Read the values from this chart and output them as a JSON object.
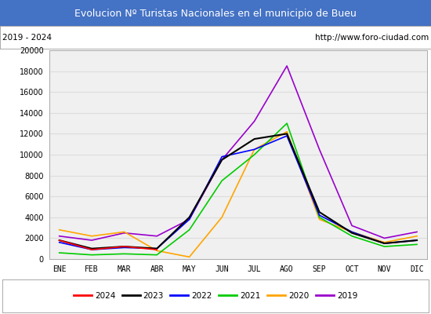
{
  "title": "Evolucion Nº Turistas Nacionales en el municipio de Bueu",
  "subtitle_left": "2019 - 2024",
  "subtitle_right": "http://www.foro-ciudad.com",
  "title_bg_color": "#4472c4",
  "title_text_color": "#ffffff",
  "months": [
    "ENE",
    "FEB",
    "MAR",
    "ABR",
    "MAY",
    "JUN",
    "JUL",
    "AGO",
    "SEP",
    "OCT",
    "NOV",
    "DIC"
  ],
  "ylim": [
    0,
    20000
  ],
  "yticks": [
    0,
    2000,
    4000,
    6000,
    8000,
    10000,
    12000,
    14000,
    16000,
    18000,
    20000
  ],
  "series": {
    "2024": {
      "color": "#ff0000",
      "linewidth": 1.2,
      "data": [
        1800,
        900,
        1200,
        900,
        null,
        null,
        null,
        null,
        null,
        null,
        null,
        null
      ]
    },
    "2023": {
      "color": "#000000",
      "linewidth": 1.5,
      "data": [
        1800,
        1000,
        1200,
        1000,
        4000,
        9500,
        11500,
        12000,
        4500,
        2500,
        1500,
        1800
      ]
    },
    "2022": {
      "color": "#0000ff",
      "linewidth": 1.2,
      "data": [
        1600,
        900,
        1100,
        1000,
        3800,
        9800,
        10500,
        11800,
        4200,
        2600,
        1500,
        1800
      ]
    },
    "2021": {
      "color": "#00cc00",
      "linewidth": 1.2,
      "data": [
        600,
        400,
        500,
        400,
        2800,
        7500,
        10000,
        13000,
        4000,
        2200,
        1200,
        1400
      ]
    },
    "2020": {
      "color": "#ffa500",
      "linewidth": 1.2,
      "data": [
        2800,
        2200,
        2600,
        800,
        200,
        4000,
        10500,
        12200,
        3800,
        2600,
        1600,
        2200
      ]
    },
    "2019": {
      "color": "#9900cc",
      "linewidth": 1.2,
      "data": [
        2200,
        1800,
        2500,
        2200,
        3800,
        9500,
        13200,
        18500,
        10500,
        3200,
        2000,
        2600
      ]
    }
  },
  "legend_order": [
    "2024",
    "2023",
    "2022",
    "2021",
    "2020",
    "2019"
  ],
  "grid_color": "#dddddd",
  "bg_color": "#f0f0f0",
  "border_color": "#aaaaaa"
}
